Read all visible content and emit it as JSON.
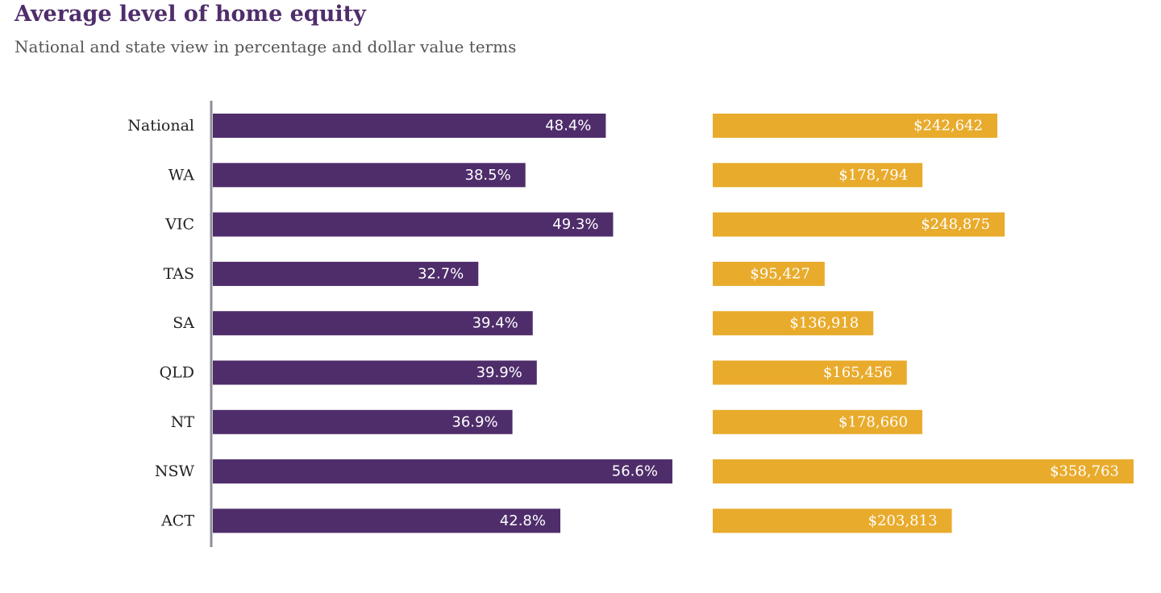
{
  "chart_data": {
    "type": "bar",
    "title": "Average level of home equity",
    "subtitle": "National and state view in percentage and dollar value terms",
    "categories": [
      "National",
      "WA",
      "VIC",
      "TAS",
      "SA",
      "QLD",
      "NT",
      "NSW",
      "ACT"
    ],
    "series": [
      {
        "values": [
          48.4,
          38.5,
          49.3,
          32.7,
          39.4,
          39.9,
          36.9,
          56.6,
          42.8
        ],
        "labels": [
          "48.4%",
          "38.5%",
          "49.3%",
          "32.7%",
          "39.4%",
          "39.9%",
          "36.9%",
          "56.6%",
          "42.8%"
        ],
        "color": "#4f2d6b"
      },
      {
        "values": [
          242642,
          178794,
          248875,
          95427,
          136918,
          165456,
          178660,
          358763,
          203813
        ],
        "labels": [
          "$242,642",
          "$178,794",
          "$248,875",
          "$95,427",
          "$136,918",
          "$165,456",
          "$178,660",
          "$358,763",
          "$203,813"
        ],
        "color": "#e8ab2c"
      }
    ],
    "axis_color": "#8f8f9c",
    "grid": false,
    "legend": "none"
  }
}
